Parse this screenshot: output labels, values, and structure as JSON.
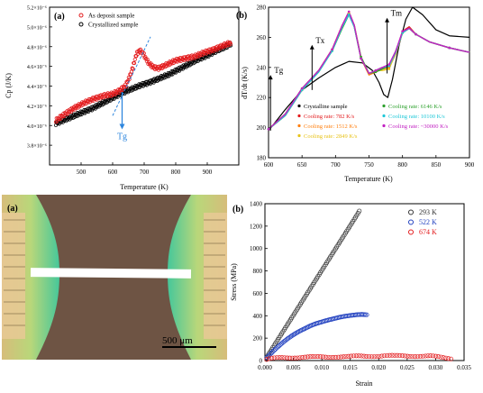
{
  "chart_data": [
    {
      "panel": "(a)",
      "type": "scatter",
      "xlabel": "Temperature (K)",
      "ylabel": "Cp (J/K)",
      "xlim": [
        400,
        1000
      ],
      "ylim": [
        3.6e-06,
        5.2e-06
      ],
      "xticks": [
        500,
        600,
        700,
        800,
        900
      ],
      "xticklabels": [
        "500",
        "600",
        "700",
        "800",
        "900"
      ],
      "yticks": [
        3.8e-06,
        4e-06,
        4.2e-06,
        4.4e-06,
        4.6e-06,
        4.8e-06,
        5e-06,
        5.2e-06
      ],
      "yticklabels": [
        "3.8×10⁻⁶",
        "4.0×10⁻⁶",
        "4.2×10⁻⁶",
        "4.4×10⁻⁶",
        "4.6×10⁻⁶",
        "4.8×10⁻⁶",
        "5.0×10⁻⁶",
        "5.2×10⁻⁶"
      ],
      "legend_placement": "top-left",
      "annotation": {
        "label": "Tg",
        "x": 630,
        "y_from": 4.34e-06,
        "y_to": 3.97e-06,
        "color": "#2e86de"
      },
      "series": [
        {
          "name": "As deposit sample",
          "color": "#e31a1c",
          "x": [
            420,
            450,
            480,
            510,
            540,
            570,
            600,
            620,
            640,
            655,
            665,
            675,
            685,
            695,
            705,
            715,
            730,
            745,
            760,
            780,
            800,
            830,
            860,
            890,
            920,
            950,
            975
          ],
          "y": [
            4.05e-06,
            4.12e-06,
            4.18e-06,
            4.23e-06,
            4.27e-06,
            4.3e-06,
            4.32e-06,
            4.35e-06,
            4.4e-06,
            4.5e-06,
            4.6e-06,
            4.72e-06,
            4.76e-06,
            4.74e-06,
            4.68e-06,
            4.63e-06,
            4.59e-06,
            4.58e-06,
            4.6e-06,
            4.63e-06,
            4.66e-06,
            4.68e-06,
            4.7e-06,
            4.74e-06,
            4.77e-06,
            4.81e-06,
            4.84e-06
          ]
        },
        {
          "name": "Crystallized sample",
          "color": "#000000",
          "x": [
            420,
            450,
            480,
            510,
            540,
            570,
            600,
            630,
            660,
            690,
            720,
            750,
            780,
            810,
            840,
            870,
            900,
            930,
            960,
            975
          ],
          "y": [
            4.02e-06,
            4.06e-06,
            4.1e-06,
            4.14e-06,
            4.18e-06,
            4.23e-06,
            4.28e-06,
            4.33e-06,
            4.37e-06,
            4.41e-06,
            4.44e-06,
            4.48e-06,
            4.52e-06,
            4.57e-06,
            4.62e-06,
            4.67e-06,
            4.71e-06,
            4.76e-06,
            4.8e-06,
            4.83e-06
          ]
        },
        {
          "name": "",
          "color": "#2e86de",
          "dashed": true,
          "x": [
            600,
            640,
            680,
            720
          ],
          "y": [
            4.1e-06,
            4.37e-06,
            4.63e-06,
            4.9e-06
          ]
        }
      ]
    },
    {
      "panel": "(b)",
      "type": "line",
      "xlabel": "Temperature (K)",
      "ylabel": "dT/dt (K/s)",
      "xlim": [
        600,
        900
      ],
      "ylim": [
        180,
        280
      ],
      "xticks": [
        600,
        650,
        700,
        750,
        800,
        850,
        900
      ],
      "xticklabels": [
        "600",
        "650",
        "700",
        "750",
        "800",
        "850",
        "900"
      ],
      "yticks": [
        180,
        200,
        220,
        240,
        260,
        280
      ],
      "yticklabels": [
        "180",
        "200",
        "220",
        "240",
        "260",
        "280"
      ],
      "legend_placement": "bottom",
      "annotations": [
        {
          "label": "Tg",
          "x": 603,
          "y_from": 198,
          "y_to": 235
        },
        {
          "label": "Tx",
          "x": 665,
          "y_from": 225,
          "y_to": 255
        },
        {
          "label": "Tm",
          "x": 777,
          "y_from": 236,
          "y_to": 273
        }
      ],
      "series": [
        {
          "name": "Crystalline sample",
          "color": "#000000",
          "x": [
            600,
            625,
            650,
            675,
            700,
            720,
            740,
            755,
            765,
            772,
            778,
            785,
            795,
            805,
            815,
            830,
            850,
            870,
            900
          ],
          "y": [
            198,
            212,
            225,
            233,
            240,
            244,
            243,
            238,
            230,
            222,
            220,
            232,
            255,
            272,
            280,
            275,
            265,
            261,
            260
          ]
        },
        {
          "name": "Cooling rate: 782 K/s",
          "color": "#e31a1c",
          "x": [
            600,
            625,
            650,
            675,
            695,
            710,
            720,
            728,
            738,
            750,
            760,
            770,
            780,
            790,
            800,
            810,
            820,
            840,
            870,
            900
          ],
          "y": [
            199,
            208,
            225,
            238,
            252,
            268,
            277,
            268,
            246,
            236,
            238,
            240,
            241,
            250,
            264,
            267,
            262,
            257,
            253,
            250
          ]
        },
        {
          "name": "Cooling rate: 1512 K/s",
          "color": "#ff7f0e",
          "x": [
            600,
            625,
            650,
            675,
            695,
            710,
            720,
            728,
            738,
            750,
            760,
            770,
            780,
            790,
            800,
            810,
            820,
            840,
            870,
            900
          ],
          "y": [
            199,
            209,
            226,
            238,
            252,
            268,
            276,
            267,
            246,
            235,
            237,
            239,
            240,
            249,
            263,
            266,
            262,
            257,
            253,
            250
          ]
        },
        {
          "name": "Cooling rate: 2849 K/s",
          "color": "#e8c31a",
          "x": [
            600,
            625,
            650,
            675,
            695,
            710,
            720,
            728,
            738,
            750,
            760,
            770,
            780,
            790,
            800,
            810,
            820,
            840,
            870,
            900
          ],
          "y": [
            199,
            208,
            225,
            237,
            251,
            267,
            276,
            268,
            247,
            236,
            238,
            238,
            239,
            250,
            263,
            266,
            262,
            257,
            253,
            250
          ]
        },
        {
          "name": "Cooling rate: 6146 K/s",
          "color": "#2ca02c",
          "x": [
            600,
            625,
            650,
            675,
            695,
            710,
            720,
            728,
            738,
            750,
            760,
            770,
            780,
            790,
            800,
            810,
            820,
            840,
            870,
            900
          ],
          "y": [
            199,
            209,
            226,
            238,
            251,
            266,
            275,
            267,
            247,
            236,
            237,
            239,
            241,
            251,
            263,
            266,
            262,
            257,
            253,
            250
          ]
        },
        {
          "name": "Cooling rate: 10100 K/s",
          "color": "#1fc8d8",
          "x": [
            600,
            625,
            650,
            675,
            695,
            710,
            720,
            728,
            738,
            750,
            760,
            770,
            780,
            790,
            800,
            810,
            820,
            840,
            870,
            900
          ],
          "y": [
            199,
            208,
            225,
            237,
            251,
            267,
            275,
            267,
            246,
            236,
            238,
            240,
            241,
            250,
            263,
            266,
            262,
            257,
            253,
            250
          ]
        },
        {
          "name": "Cooling rate: ~30000 K/s",
          "color": "#c221c2",
          "x": [
            600,
            625,
            650,
            675,
            695,
            710,
            720,
            728,
            738,
            750,
            760,
            770,
            780,
            790,
            800,
            810,
            820,
            840,
            870,
            900
          ],
          "y": [
            199,
            209,
            226,
            238,
            252,
            268,
            277,
            268,
            246,
            236,
            238,
            240,
            242,
            251,
            264,
            266,
            262,
            257,
            253,
            250
          ]
        }
      ]
    },
    {
      "panel": "(b)",
      "type": "scatter",
      "xlabel": "Strain",
      "ylabel": "Stress (MPa)",
      "xlim": [
        0,
        0.035
      ],
      "ylim": [
        0,
        1400
      ],
      "xticks": [
        0,
        0.005,
        0.01,
        0.015,
        0.02,
        0.025,
        0.03,
        0.035
      ],
      "xticklabels": [
        "0.000",
        "0.005",
        "0.010",
        "0.015",
        "0.020",
        "0.025",
        "0.030",
        "0.035"
      ],
      "yticks": [
        0,
        200,
        400,
        600,
        800,
        1000,
        1200,
        1400
      ],
      "yticklabels": [
        "0",
        "200",
        "400",
        "600",
        "800",
        "1000",
        "1200",
        "1400"
      ],
      "legend_placement": "top-right",
      "series": [
        {
          "name": "293 K",
          "color": "#333333",
          "x": [
            0.0003,
            0.001,
            0.002,
            0.003,
            0.004,
            0.005,
            0.006,
            0.007,
            0.008,
            0.009,
            0.01,
            0.011,
            0.012,
            0.013,
            0.014,
            0.015,
            0.016,
            0.0167
          ],
          "y": [
            30,
            85,
            165,
            245,
            325,
            405,
            485,
            565,
            645,
            725,
            805,
            885,
            965,
            1045,
            1125,
            1205,
            1285,
            1345
          ]
        },
        {
          "name": "522 K",
          "color": "#1f3fbf",
          "x": [
            0.0003,
            0.001,
            0.002,
            0.003,
            0.004,
            0.005,
            0.006,
            0.007,
            0.008,
            0.009,
            0.01,
            0.011,
            0.012,
            0.013,
            0.014,
            0.015,
            0.016,
            0.017,
            0.018
          ],
          "y": [
            25,
            60,
            110,
            155,
            195,
            230,
            260,
            285,
            310,
            330,
            345,
            360,
            372,
            385,
            395,
            402,
            408,
            412,
            408
          ]
        },
        {
          "name": "674 K",
          "color": "#e31a1c",
          "x": [
            0.0003,
            0.001,
            0.002,
            0.003,
            0.005,
            0.007,
            0.009,
            0.011,
            0.013,
            0.015,
            0.017,
            0.019,
            0.021,
            0.023,
            0.025,
            0.027,
            0.029,
            0.031,
            0.033
          ],
          "y": [
            8,
            15,
            20,
            24,
            28,
            30,
            30,
            32,
            35,
            34,
            38,
            40,
            42,
            40,
            42,
            40,
            38,
            28,
            18
          ]
        }
      ]
    }
  ],
  "image_panel": {
    "label": "(a)",
    "scale_bar": "500 μm"
  }
}
